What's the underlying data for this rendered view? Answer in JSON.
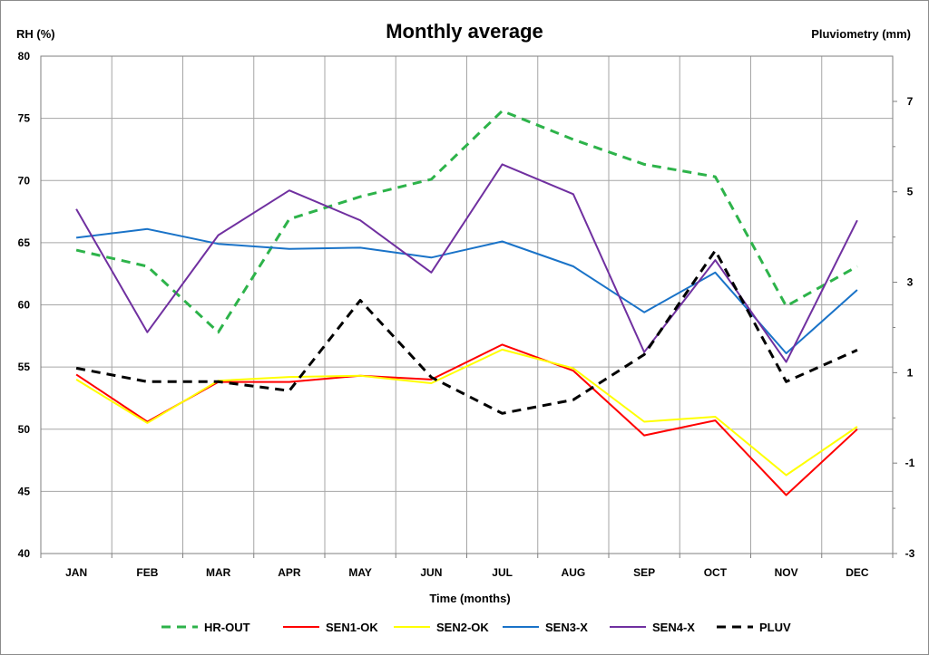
{
  "chart_data": {
    "type": "line",
    "title": "Monthly average",
    "ylabel": "RH (%)",
    "y2label": "Pluviometry (mm)",
    "xlabel": "Time (months)",
    "ylim": [
      40,
      80
    ],
    "yticks": [
      40,
      45,
      50,
      55,
      60,
      65,
      70,
      75,
      80
    ],
    "y2lim": [
      -3,
      8
    ],
    "y2ticks": [
      -3,
      -1,
      1,
      3,
      5,
      7
    ],
    "grid": true,
    "legend_position": "bottom",
    "categories": [
      "JAN",
      "FEB",
      "MAR",
      "APR",
      "MAY",
      "JUN",
      "JUL",
      "AUG",
      "SEP",
      "OCT",
      "NOV",
      "DEC"
    ],
    "series": [
      {
        "name": "HR-OUT",
        "axis": "left",
        "color": "#2db34a",
        "dash": "dashed",
        "values": [
          64.4,
          63.1,
          57.8,
          66.9,
          68.7,
          70.1,
          75.6,
          73.3,
          71.3,
          70.3,
          59.9,
          63.1
        ]
      },
      {
        "name": "SEN1-OK",
        "axis": "left",
        "color": "#ff0000",
        "dash": "solid",
        "values": [
          54.4,
          50.6,
          53.8,
          53.8,
          54.3,
          54.0,
          56.8,
          54.7,
          49.5,
          50.7,
          44.7,
          50.0
        ]
      },
      {
        "name": "SEN2-OK",
        "axis": "left",
        "color": "#ffff00",
        "dash": "solid",
        "values": [
          54.0,
          50.5,
          53.9,
          54.2,
          54.3,
          53.7,
          56.4,
          54.9,
          50.6,
          51.0,
          46.3,
          50.2
        ]
      },
      {
        "name": "SEN3-X",
        "axis": "left",
        "color": "#1a73c8",
        "dash": "solid",
        "values": [
          65.4,
          66.1,
          64.9,
          64.5,
          64.6,
          63.8,
          65.1,
          63.1,
          59.4,
          62.6,
          56.1,
          61.2
        ]
      },
      {
        "name": "SEN4-X",
        "axis": "left",
        "color": "#7030a0",
        "dash": "solid",
        "values": [
          67.7,
          57.8,
          65.6,
          69.2,
          66.8,
          62.6,
          71.3,
          68.9,
          56.2,
          63.6,
          55.4,
          66.8
        ]
      },
      {
        "name": "PLUV",
        "axis": "right",
        "color": "#000000",
        "dash": "dashed",
        "values": [
          1.1,
          0.8,
          0.8,
          0.6,
          2.6,
          0.9,
          0.1,
          0.4,
          1.4,
          3.7,
          0.8,
          1.5
        ]
      }
    ]
  }
}
